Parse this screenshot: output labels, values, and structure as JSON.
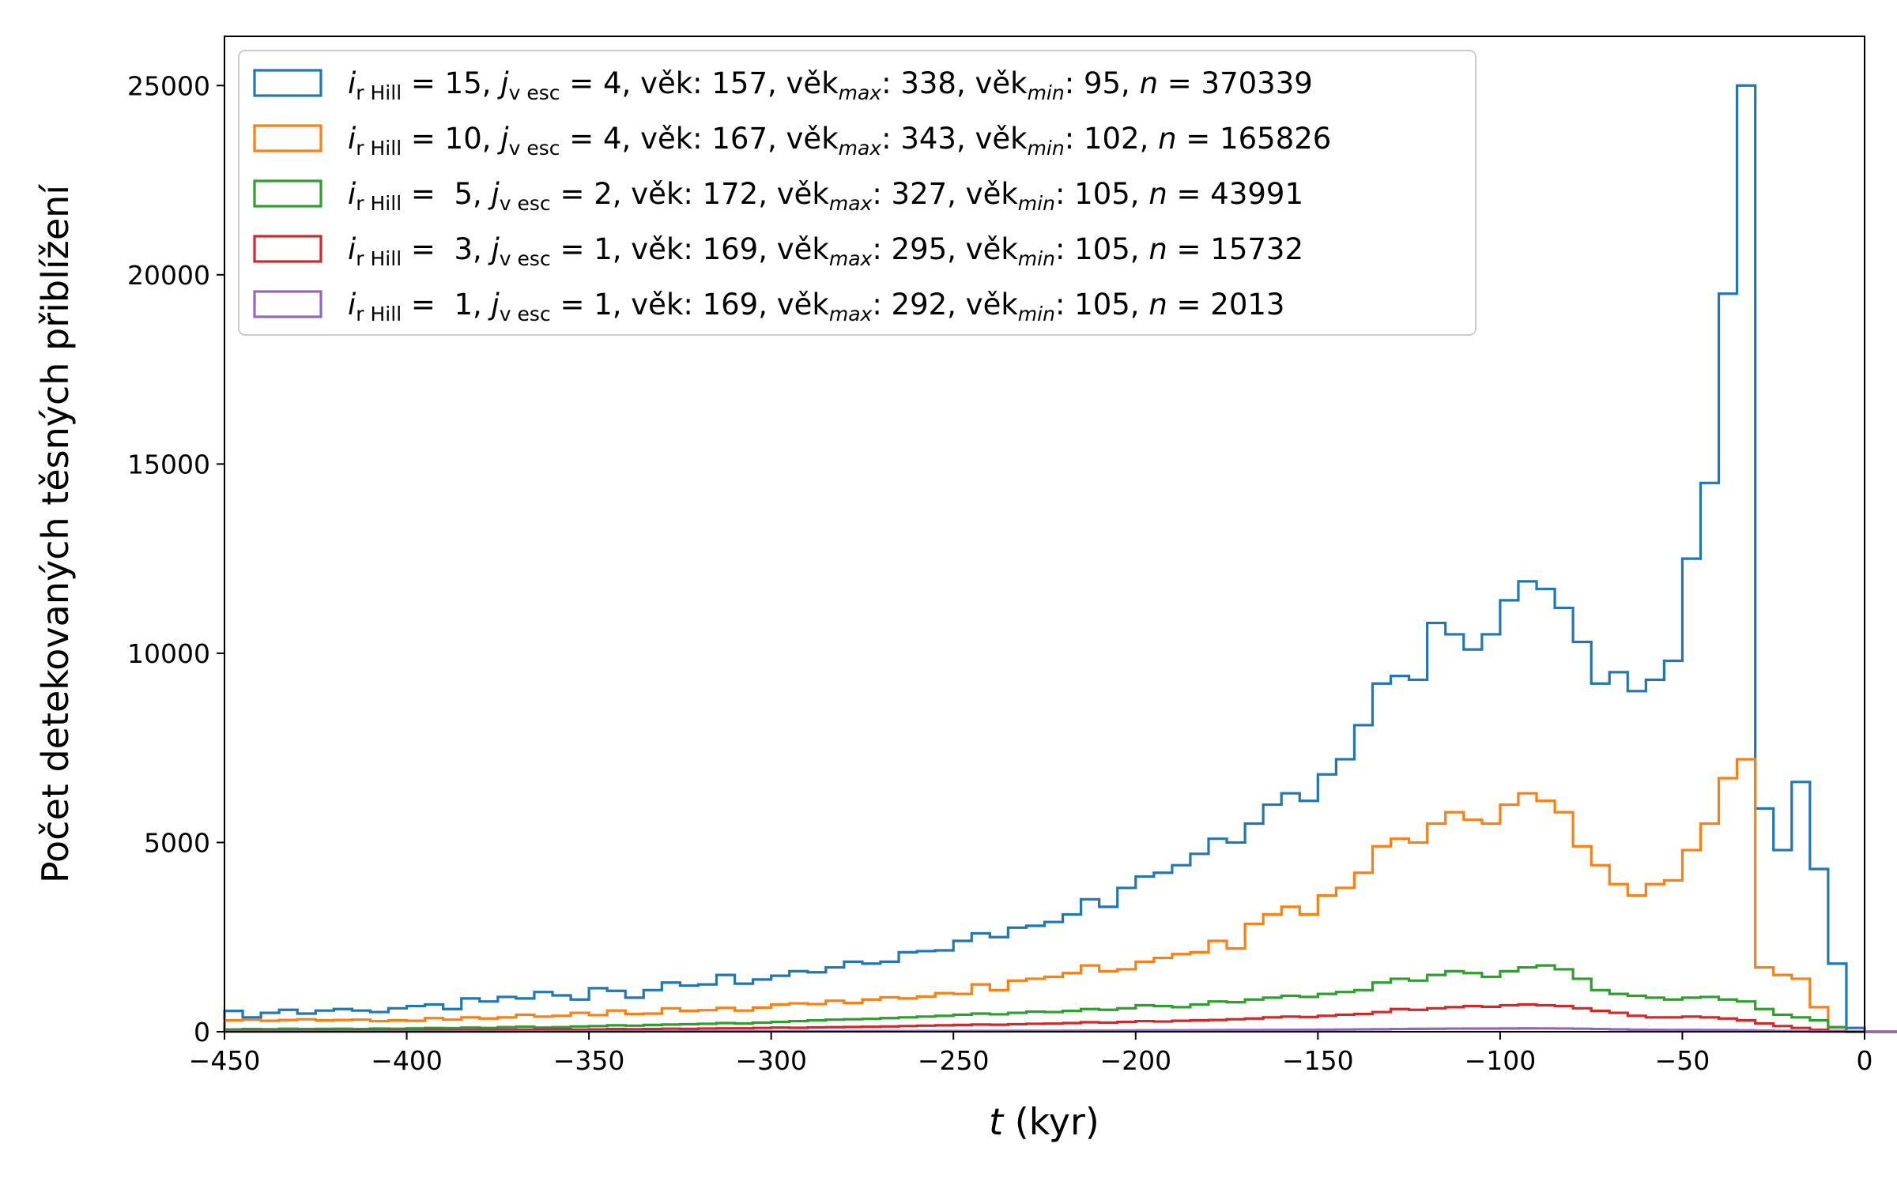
{
  "chart_data": {
    "type": "histogram-step",
    "xlabel_var": "t",
    "xlabel_unit": " (kyr)",
    "ylabel": "Počet detekovaných těsných přiblížení",
    "xlim": [
      -450,
      0
    ],
    "ylim": [
      0,
      26300
    ],
    "x_ticks": [
      "−450",
      "−400",
      "−350",
      "−300",
      "−250",
      "−200",
      "−150",
      "−100",
      "−50",
      "0"
    ],
    "y_ticks": [
      "0",
      "5000",
      "10000",
      "15000",
      "20000",
      "25000"
    ],
    "bin_start": -450,
    "bin_width": 5,
    "legend_position": "upper-left",
    "series": [
      {
        "color": "#1f77b4",
        "legend": {
          "i_val": " = 15, ",
          "j_val": " = 4, věk: 157, věk",
          "max_val": ": 338, věk",
          "min_val": ": 95, ",
          "n_val": " = 370339"
        },
        "values": [
          550,
          380,
          500,
          580,
          480,
          560,
          600,
          560,
          520,
          620,
          680,
          720,
          600,
          880,
          800,
          920,
          880,
          1050,
          960,
          850,
          1150,
          1080,
          900,
          1100,
          1300,
          1220,
          1250,
          1500,
          1270,
          1380,
          1480,
          1600,
          1570,
          1700,
          1850,
          1800,
          1850,
          2100,
          2130,
          2150,
          2400,
          2600,
          2500,
          2750,
          2800,
          2900,
          3100,
          3500,
          3300,
          3800,
          4100,
          4200,
          4400,
          4700,
          5100,
          5000,
          5500,
          6000,
          6300,
          6100,
          6800,
          7200,
          8100,
          9200,
          9400,
          9300,
          10800,
          10500,
          10100,
          10500,
          11400,
          11900,
          11700,
          11200,
          10300,
          9200,
          9500,
          9000,
          9300,
          9800,
          12500,
          14500,
          19500,
          25000,
          5900,
          4800,
          6600,
          4300,
          1800,
          100,
          0,
          0,
          0,
          0,
          0,
          0,
          0,
          0,
          0,
          0,
          0,
          0,
          0,
          0,
          0,
          0,
          0,
          0,
          0,
          0,
          0,
          0,
          0,
          0,
          0,
          0,
          0,
          0,
          0,
          0,
          0,
          0,
          0,
          0,
          0,
          0,
          0,
          0,
          0,
          0,
          0,
          0,
          0,
          0,
          0,
          0,
          0,
          0,
          0,
          0,
          0,
          0,
          0,
          0,
          0,
          0,
          0,
          0,
          0,
          0,
          0
        ]
      },
      {
        "color": "#ff7f0e",
        "legend": {
          "i_val": " = 10, ",
          "j_val": " = 4, věk: 167, věk",
          "max_val": ": 343, věk",
          "min_val": ": 102, ",
          "n_val": " = 165826"
        },
        "values": [
          300,
          320,
          290,
          310,
          330,
          300,
          310,
          320,
          280,
          300,
          290,
          360,
          320,
          380,
          350,
          380,
          450,
          400,
          420,
          500,
          440,
          560,
          470,
          480,
          620,
          550,
          570,
          630,
          560,
          640,
          720,
          750,
          730,
          820,
          760,
          850,
          910,
          880,
          930,
          1020,
          1000,
          1250,
          1100,
          1350,
          1400,
          1450,
          1550,
          1750,
          1600,
          1650,
          1850,
          1950,
          2050,
          2100,
          2400,
          2200,
          2850,
          3100,
          3300,
          3100,
          3600,
          3800,
          4200,
          4900,
          5100,
          5000,
          5500,
          5800,
          5600,
          5500,
          6000,
          6300,
          6100,
          5800,
          4900,
          4400,
          3900,
          3600,
          3900,
          4000,
          4800,
          5500,
          6700,
          7200,
          1700,
          1500,
          1400,
          650,
          120,
          0,
          0,
          0,
          0,
          0,
          0,
          0,
          0,
          0,
          0,
          0,
          0,
          0,
          0,
          0,
          0,
          0,
          0,
          0,
          0,
          0,
          0,
          0,
          0,
          0,
          0,
          0,
          0,
          0,
          0,
          0,
          0,
          0,
          0,
          0,
          0,
          0,
          0,
          0,
          0,
          0,
          0,
          0,
          0,
          0,
          0,
          0,
          0,
          0,
          0,
          0,
          0,
          0,
          0,
          0,
          0,
          0,
          0,
          0,
          0,
          0,
          0,
          0,
          0
        ]
      },
      {
        "color": "#2ca02c",
        "legend": {
          "i_val": " =  5, ",
          "j_val": " = 2, věk: 172, věk",
          "max_val": ": 327, věk",
          "min_val": ": 105, ",
          "n_val": " = 43991"
        },
        "values": [
          60,
          70,
          65,
          80,
          70,
          75,
          80,
          70,
          85,
          80,
          90,
          100,
          95,
          110,
          100,
          120,
          130,
          110,
          120,
          140,
          150,
          170,
          160,
          180,
          190,
          200,
          210,
          230,
          220,
          240,
          260,
          280,
          300,
          320,
          330,
          340,
          360,
          380,
          400,
          420,
          450,
          480,
          460,
          500,
          530,
          520,
          550,
          600,
          580,
          620,
          700,
          680,
          650,
          720,
          800,
          780,
          850,
          900,
          950,
          920,
          1000,
          1050,
          1100,
          1300,
          1400,
          1350,
          1500,
          1600,
          1550,
          1450,
          1600,
          1700,
          1750,
          1650,
          1400,
          1100,
          1000,
          950,
          900,
          850,
          900,
          920,
          850,
          800,
          600,
          450,
          380,
          300,
          120,
          0,
          0,
          0,
          0,
          0,
          0,
          0,
          0,
          0,
          0,
          0,
          0,
          0,
          0,
          0,
          0,
          0,
          0,
          0,
          0,
          0,
          0,
          0,
          0,
          0,
          0,
          0,
          0,
          0,
          0,
          0,
          0,
          0,
          0,
          0,
          0,
          0,
          0,
          0,
          0,
          0,
          0,
          0,
          0,
          0,
          0,
          0,
          0,
          0,
          0,
          0,
          0,
          0,
          0,
          0,
          0,
          0,
          0,
          0,
          0,
          0,
          0,
          0,
          0,
          0,
          0,
          0
        ]
      },
      {
        "color": "#d62728",
        "legend": {
          "i_val": " =  3, ",
          "j_val": " = 1, věk: 169, věk",
          "max_val": ": 295, věk",
          "min_val": ": 105, ",
          "n_val": " = 15732"
        },
        "values": [
          20,
          20,
          25,
          20,
          25,
          30,
          25,
          30,
          30,
          35,
          30,
          40,
          40,
          45,
          40,
          50,
          50,
          55,
          60,
          55,
          60,
          70,
          65,
          70,
          80,
          75,
          85,
          90,
          90,
          100,
          110,
          105,
          115,
          120,
          125,
          130,
          140,
          150,
          160,
          170,
          180,
          190,
          185,
          200,
          210,
          215,
          230,
          250,
          240,
          260,
          280,
          270,
          290,
          300,
          310,
          330,
          350,
          380,
          400,
          390,
          420,
          450,
          470,
          520,
          600,
          580,
          620,
          650,
          680,
          660,
          700,
          720,
          700,
          680,
          620,
          550,
          500,
          420,
          380,
          380,
          400,
          380,
          350,
          300,
          220,
          150,
          100,
          50,
          20,
          0,
          0,
          0,
          0,
          0,
          0,
          0,
          0,
          0,
          0,
          0,
          0,
          0,
          0,
          0,
          0,
          0,
          0,
          0,
          0,
          0,
          0,
          0,
          0,
          0,
          0,
          0,
          0,
          0,
          0,
          0,
          0,
          0,
          0,
          0,
          0,
          0,
          0,
          0,
          0,
          0,
          0,
          0,
          0,
          0,
          0,
          0,
          0,
          0,
          0,
          0,
          0,
          0,
          0,
          0,
          0,
          0,
          0,
          0,
          0,
          0,
          0,
          0,
          0,
          0,
          0,
          0
        ]
      },
      {
        "color": "#9467bd",
        "legend": {
          "i_val": " =  1, ",
          "j_val": " = 1, věk: 169, věk",
          "max_val": ": 292, věk",
          "min_val": ": 105, ",
          "n_val": " = 2013"
        },
        "values": [
          3,
          3,
          3,
          3,
          4,
          4,
          4,
          4,
          5,
          5,
          5,
          5,
          6,
          6,
          6,
          6,
          7,
          7,
          7,
          7,
          8,
          8,
          8,
          9,
          9,
          10,
          10,
          11,
          11,
          12,
          12,
          13,
          13,
          14,
          15,
          15,
          16,
          17,
          18,
          19,
          20,
          21,
          22,
          23,
          24,
          25,
          27,
          28,
          30,
          32,
          34,
          36,
          38,
          40,
          42,
          44,
          46,
          48,
          50,
          52,
          55,
          58,
          62,
          66,
          72,
          75,
          78,
          82,
          84,
          83,
          86,
          88,
          87,
          85,
          80,
          72,
          62,
          55,
          50,
          48,
          47,
          45,
          42,
          38,
          28,
          18,
          10,
          5,
          2,
          0,
          0,
          0,
          0,
          0,
          0,
          0,
          0,
          0,
          0,
          0,
          0,
          0,
          0,
          0,
          0,
          0,
          0,
          0,
          0,
          0,
          0,
          0,
          0,
          0,
          0,
          0,
          0,
          0,
          0,
          0,
          0,
          0,
          0,
          0,
          0,
          0,
          0,
          0,
          0,
          0,
          0,
          0,
          0,
          0,
          0,
          0,
          0,
          0,
          0,
          0,
          0,
          0,
          0,
          0,
          0,
          0,
          0,
          0,
          0,
          0,
          0,
          0,
          0,
          0,
          0,
          0
        ]
      }
    ],
    "legend_symbols": {
      "i": "i",
      "i_sub": "r Hill",
      "j": "j",
      "j_sub": "v esc",
      "max_sub": "max",
      "min_sub": "min",
      "n": "n"
    }
  }
}
